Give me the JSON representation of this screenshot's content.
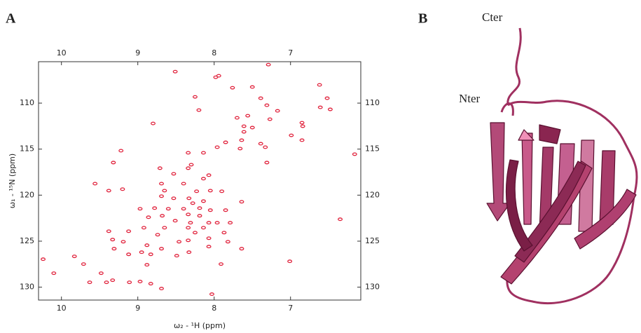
{
  "panel_labels": [
    "A",
    "B"
  ],
  "chart_data": {
    "type": "scatter",
    "xlabel": "ω₂ - ¹H (ppm)",
    "ylabel": "ω₁ - ¹⁵N (ppm)",
    "color": "#e0203a",
    "xlim": [
      10.3,
      6.08
    ],
    "ylim": [
      131.4,
      105.5
    ],
    "xticks": [
      10,
      9,
      8,
      7
    ],
    "yticks": [
      110,
      115,
      120,
      125,
      130
    ],
    "x": [
      8.51,
      7.29,
      7.94,
      7.98,
      7.76,
      7.5,
      6.62,
      6.52,
      8.25,
      7.39,
      6.61,
      6.48,
      7.31,
      7.17,
      8.2,
      7.56,
      7.7,
      7.27,
      8.8,
      6.85,
      6.84,
      7.61,
      7.5,
      7.61,
      6.99,
      6.85,
      7.64,
      7.39,
      7.33,
      7.96,
      7.85,
      9.22,
      8.34,
      8.14,
      7.66,
      6.16,
      9.32,
      8.3,
      7.31,
      8.34,
      8.71,
      8.53,
      8.07,
      8.14,
      9.56,
      8.69,
      8.4,
      9.2,
      9.38,
      8.65,
      8.23,
      8.05,
      7.9,
      8.69,
      8.53,
      8.33,
      8.14,
      8.28,
      7.64,
      8.97,
      8.78,
      8.6,
      8.4,
      8.19,
      8.05,
      7.85,
      8.34,
      8.19,
      8.68,
      8.86,
      8.51,
      8.31,
      8.07,
      8.14,
      8.34,
      7.96,
      7.79,
      6.35,
      8.92,
      8.65,
      9.38,
      9.12,
      8.74,
      8.25,
      7.87,
      9.33,
      9.19,
      8.46,
      8.34,
      8.07,
      7.82,
      8.88,
      8.69,
      9.31,
      8.07,
      7.64,
      8.95,
      8.83,
      9.12,
      8.49,
      8.33,
      10.24,
      9.83,
      7.01,
      9.71,
      8.88,
      7.91,
      10.1,
      9.48,
      9.33,
      9.41,
      9.63,
      9.11,
      8.97,
      8.83,
      8.69,
      8.03
    ],
    "y": [
      106.58,
      105.82,
      107.03,
      107.19,
      108.33,
      108.25,
      108.02,
      109.47,
      109.32,
      109.47,
      110.46,
      110.68,
      110.23,
      110.84,
      110.76,
      111.37,
      111.6,
      111.75,
      112.21,
      112.13,
      112.51,
      112.51,
      112.66,
      113.12,
      113.5,
      114.03,
      114.03,
      114.41,
      114.79,
      114.79,
      114.26,
      115.17,
      115.4,
      115.4,
      114.94,
      115.55,
      116.46,
      116.69,
      116.46,
      117.07,
      117.07,
      117.68,
      117.83,
      118.21,
      118.75,
      118.75,
      118.75,
      119.35,
      119.51,
      119.51,
      119.58,
      119.51,
      119.58,
      120.11,
      120.34,
      120.34,
      120.65,
      120.87,
      120.72,
      121.48,
      121.41,
      121.48,
      121.48,
      121.41,
      121.63,
      121.63,
      122.09,
      122.24,
      122.24,
      122.4,
      122.78,
      123.0,
      123.0,
      123.54,
      123.54,
      123.0,
      123.0,
      122.62,
      123.54,
      123.54,
      123.92,
      123.92,
      124.3,
      124.07,
      124.07,
      124.83,
      125.06,
      125.06,
      124.91,
      124.68,
      125.06,
      125.44,
      125.82,
      125.82,
      125.59,
      125.82,
      126.2,
      126.43,
      126.43,
      126.58,
      126.2,
      126.96,
      126.65,
      127.19,
      127.49,
      127.57,
      127.49,
      128.48,
      128.48,
      129.24,
      129.47,
      129.47,
      129.47,
      129.39,
      129.62,
      130.15,
      130.76
    ]
  },
  "structure": {
    "labels": [
      "Cter",
      "Nter"
    ]
  }
}
